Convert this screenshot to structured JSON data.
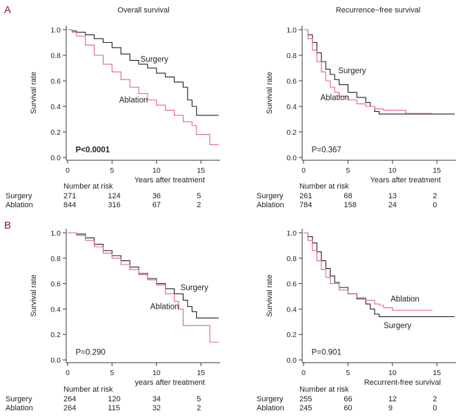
{
  "figure": {
    "panels": [
      "A",
      "B"
    ]
  },
  "colors": {
    "surgery": "#1a1a1a",
    "ablation": "#e0607e",
    "axis": "#333333"
  },
  "chart_data": [
    {
      "id": "A1",
      "type": "line",
      "title": "Overall survival",
      "xlabel": "Years after treatment",
      "ylabel": "Survival  rate",
      "xlim": [
        0,
        17
      ],
      "ylim": [
        0,
        1.0
      ],
      "xticks": [
        0,
        5,
        10,
        15
      ],
      "yticks": [
        0.0,
        0.2,
        0.4,
        0.6,
        0.8,
        1.0
      ],
      "pvalue": "P<0.0001",
      "pvalue_bold": true,
      "series": [
        {
          "name": "Surgery",
          "color": "#1a1a1a",
          "points": [
            [
              0,
              1.0
            ],
            [
              0.5,
              0.99
            ],
            [
              1,
              0.98
            ],
            [
              2,
              0.96
            ],
            [
              3,
              0.93
            ],
            [
              4,
              0.9
            ],
            [
              5,
              0.86
            ],
            [
              6,
              0.81
            ],
            [
              7,
              0.76
            ],
            [
              8,
              0.73
            ],
            [
              9,
              0.7
            ],
            [
              10,
              0.66
            ],
            [
              11,
              0.63
            ],
            [
              12,
              0.59
            ],
            [
              13,
              0.55
            ],
            [
              13.5,
              0.45
            ],
            [
              14,
              0.4
            ],
            [
              14.5,
              0.33
            ],
            [
              17,
              0.33
            ]
          ]
        },
        {
          "name": "Ablation",
          "color": "#e0607e",
          "points": [
            [
              0,
              1.0
            ],
            [
              0.5,
              0.98
            ],
            [
              1,
              0.95
            ],
            [
              2,
              0.88
            ],
            [
              3,
              0.8
            ],
            [
              4,
              0.73
            ],
            [
              5,
              0.67
            ],
            [
              6,
              0.61
            ],
            [
              7,
              0.55
            ],
            [
              8,
              0.5
            ],
            [
              9,
              0.45
            ],
            [
              10,
              0.41
            ],
            [
              11,
              0.37
            ],
            [
              12,
              0.33
            ],
            [
              13,
              0.28
            ],
            [
              14,
              0.25
            ],
            [
              14.5,
              0.18
            ],
            [
              16,
              0.1
            ],
            [
              17,
              0.1
            ]
          ]
        }
      ],
      "curve_labels": [
        {
          "text": "Surgery",
          "x": 8.2,
          "y": 0.75
        },
        {
          "text": "Ablation",
          "x": 5.8,
          "y": 0.43
        }
      ],
      "risk_table": {
        "header": "Number at risk",
        "times": [
          0,
          5,
          10,
          15
        ],
        "rows": [
          {
            "label": "Surgery",
            "values": [
              "271",
              "124",
              "36",
              "5"
            ]
          },
          {
            "label": "Ablation",
            "values": [
              "844",
              "316",
              "67",
              "2"
            ]
          }
        ]
      }
    },
    {
      "id": "A2",
      "type": "line",
      "title": "Recurrence−free  survival",
      "xlabel": "Years after treatment",
      "ylabel": "Survival  rate",
      "xlim": [
        0,
        17
      ],
      "ylim": [
        0,
        1.0
      ],
      "xticks": [
        0,
        5,
        10,
        15
      ],
      "yticks": [
        0.0,
        0.2,
        0.4,
        0.6,
        0.8,
        1.0
      ],
      "pvalue": "P=0.367",
      "pvalue_bold": false,
      "series": [
        {
          "name": "Surgery",
          "color": "#1a1a1a",
          "points": [
            [
              0,
              1.0
            ],
            [
              0.5,
              0.96
            ],
            [
              1,
              0.9
            ],
            [
              1.5,
              0.82
            ],
            [
              2,
              0.75
            ],
            [
              2.5,
              0.69
            ],
            [
              3,
              0.65
            ],
            [
              3.5,
              0.61
            ],
            [
              4,
              0.57
            ],
            [
              5,
              0.51
            ],
            [
              6,
              0.47
            ],
            [
              7,
              0.43
            ],
            [
              7.5,
              0.4
            ],
            [
              8,
              0.36
            ],
            [
              8.5,
              0.34
            ],
            [
              10,
              0.34
            ],
            [
              17,
              0.34
            ]
          ]
        },
        {
          "name": "Ablation",
          "color": "#e0607e",
          "points": [
            [
              0,
              1.0
            ],
            [
              0.5,
              0.93
            ],
            [
              1,
              0.84
            ],
            [
              1.5,
              0.75
            ],
            [
              2,
              0.67
            ],
            [
              2.5,
              0.6
            ],
            [
              3,
              0.55
            ],
            [
              3.5,
              0.51
            ],
            [
              4,
              0.48
            ],
            [
              5,
              0.45
            ],
            [
              6,
              0.42
            ],
            [
              7,
              0.4
            ],
            [
              8,
              0.38
            ],
            [
              9,
              0.37
            ],
            [
              11.5,
              0.36
            ],
            [
              11.5,
              0.345
            ],
            [
              14.5,
              0.345
            ]
          ]
        }
      ],
      "curve_labels": [
        {
          "text": "Surgery",
          "x": 3.9,
          "y": 0.66
        },
        {
          "text": "Ablation",
          "x": 1.9,
          "y": 0.45
        }
      ],
      "risk_table": {
        "header": "Number at risk",
        "times": [
          0,
          5,
          10,
          15
        ],
        "rows": [
          {
            "label": "Surgery",
            "values": [
              "261",
              "68",
              "13",
              "2"
            ]
          },
          {
            "label": "Ablation",
            "values": [
              "784",
              "158",
              "24",
              "0"
            ]
          }
        ]
      }
    },
    {
      "id": "B1",
      "type": "line",
      "title": "",
      "xlabel": "years after treatment",
      "ylabel": "Survival  rate",
      "xlim": [
        0,
        17
      ],
      "ylim": [
        0,
        1.0
      ],
      "xticks": [
        0,
        5,
        10,
        15
      ],
      "yticks": [
        0.0,
        0.2,
        0.4,
        0.6,
        0.8,
        1.0
      ],
      "pvalue": "P=0.290",
      "pvalue_bold": false,
      "series": [
        {
          "name": "Surgery",
          "color": "#1a1a1a",
          "points": [
            [
              0,
              1.0
            ],
            [
              1,
              0.99
            ],
            [
              2,
              0.96
            ],
            [
              3,
              0.91
            ],
            [
              4,
              0.86
            ],
            [
              5,
              0.82
            ],
            [
              6,
              0.78
            ],
            [
              7,
              0.73
            ],
            [
              8,
              0.68
            ],
            [
              9,
              0.64
            ],
            [
              10,
              0.6
            ],
            [
              11,
              0.56
            ],
            [
              12,
              0.52
            ],
            [
              13,
              0.47
            ],
            [
              13.5,
              0.42
            ],
            [
              14,
              0.38
            ],
            [
              14.5,
              0.33
            ],
            [
              17,
              0.33
            ]
          ]
        },
        {
          "name": "Ablation",
          "color": "#e0607e",
          "points": [
            [
              0,
              1.0
            ],
            [
              1,
              0.98
            ],
            [
              2,
              0.94
            ],
            [
              3,
              0.89
            ],
            [
              4,
              0.84
            ],
            [
              5,
              0.8
            ],
            [
              6,
              0.75
            ],
            [
              7,
              0.71
            ],
            [
              8,
              0.67
            ],
            [
              9,
              0.63
            ],
            [
              10,
              0.59
            ],
            [
              11,
              0.52
            ],
            [
              12,
              0.46
            ],
            [
              12.5,
              0.4
            ],
            [
              13,
              0.27
            ],
            [
              15.5,
              0.27
            ],
            [
              16,
              0.14
            ],
            [
              17,
              0.14
            ]
          ]
        }
      ],
      "curve_labels": [
        {
          "text": "Surgery",
          "x": 12.7,
          "y": 0.55
        },
        {
          "text": "Ablation",
          "x": 9.3,
          "y": 0.4
        }
      ],
      "risk_table": {
        "header": "Number at risk",
        "times": [
          0,
          5,
          10,
          15
        ],
        "rows": [
          {
            "label": "Surgery",
            "values": [
              "264",
              "120",
              "34",
              "5"
            ]
          },
          {
            "label": "Ablation",
            "values": [
              "264",
              "115",
              "32",
              "2"
            ]
          }
        ]
      }
    },
    {
      "id": "B2",
      "type": "line",
      "title": "",
      "xlabel": "Recurrent-free  survival",
      "ylabel": "Survival  rate",
      "xlim": [
        0,
        17
      ],
      "ylim": [
        0,
        1.0
      ],
      "xticks": [
        0,
        5,
        10,
        15
      ],
      "yticks": [
        0.0,
        0.2,
        0.4,
        0.6,
        0.8,
        1.0
      ],
      "pvalue": "P=0.901",
      "pvalue_bold": false,
      "series": [
        {
          "name": "Surgery",
          "color": "#1a1a1a",
          "points": [
            [
              0,
              1.0
            ],
            [
              0.5,
              0.97
            ],
            [
              1,
              0.92
            ],
            [
              1.5,
              0.85
            ],
            [
              2,
              0.78
            ],
            [
              2.5,
              0.72
            ],
            [
              3,
              0.66
            ],
            [
              3.5,
              0.61
            ],
            [
              4,
              0.57
            ],
            [
              5,
              0.52
            ],
            [
              6,
              0.48
            ],
            [
              7,
              0.44
            ],
            [
              7.5,
              0.4
            ],
            [
              8,
              0.36
            ],
            [
              8.5,
              0.34
            ],
            [
              17,
              0.34
            ]
          ]
        },
        {
          "name": "Ablation",
          "color": "#e0607e",
          "points": [
            [
              0,
              1.0
            ],
            [
              0.5,
              0.94
            ],
            [
              1,
              0.86
            ],
            [
              1.5,
              0.78
            ],
            [
              2,
              0.71
            ],
            [
              2.5,
              0.65
            ],
            [
              3,
              0.6
            ],
            [
              4,
              0.55
            ],
            [
              5,
              0.52
            ],
            [
              6,
              0.49
            ],
            [
              7,
              0.47
            ],
            [
              8,
              0.44
            ],
            [
              8.5,
              0.43
            ],
            [
              9,
              0.41
            ],
            [
              10,
              0.39
            ],
            [
              14.5,
              0.39
            ]
          ]
        }
      ],
      "curve_labels": [
        {
          "text": "Ablation",
          "x": 9.8,
          "y": 0.46
        },
        {
          "text": "Surgery",
          "x": 9.0,
          "y": 0.25
        }
      ],
      "risk_table": {
        "header": "Number at risk",
        "times": [
          0,
          5,
          10,
          15
        ],
        "rows": [
          {
            "label": "Surgery",
            "values": [
              "255",
              "66",
              "12",
              "2"
            ]
          },
          {
            "label": "Ablation",
            "values": [
              "245",
              "60",
              "9",
              "0"
            ]
          }
        ]
      }
    }
  ]
}
